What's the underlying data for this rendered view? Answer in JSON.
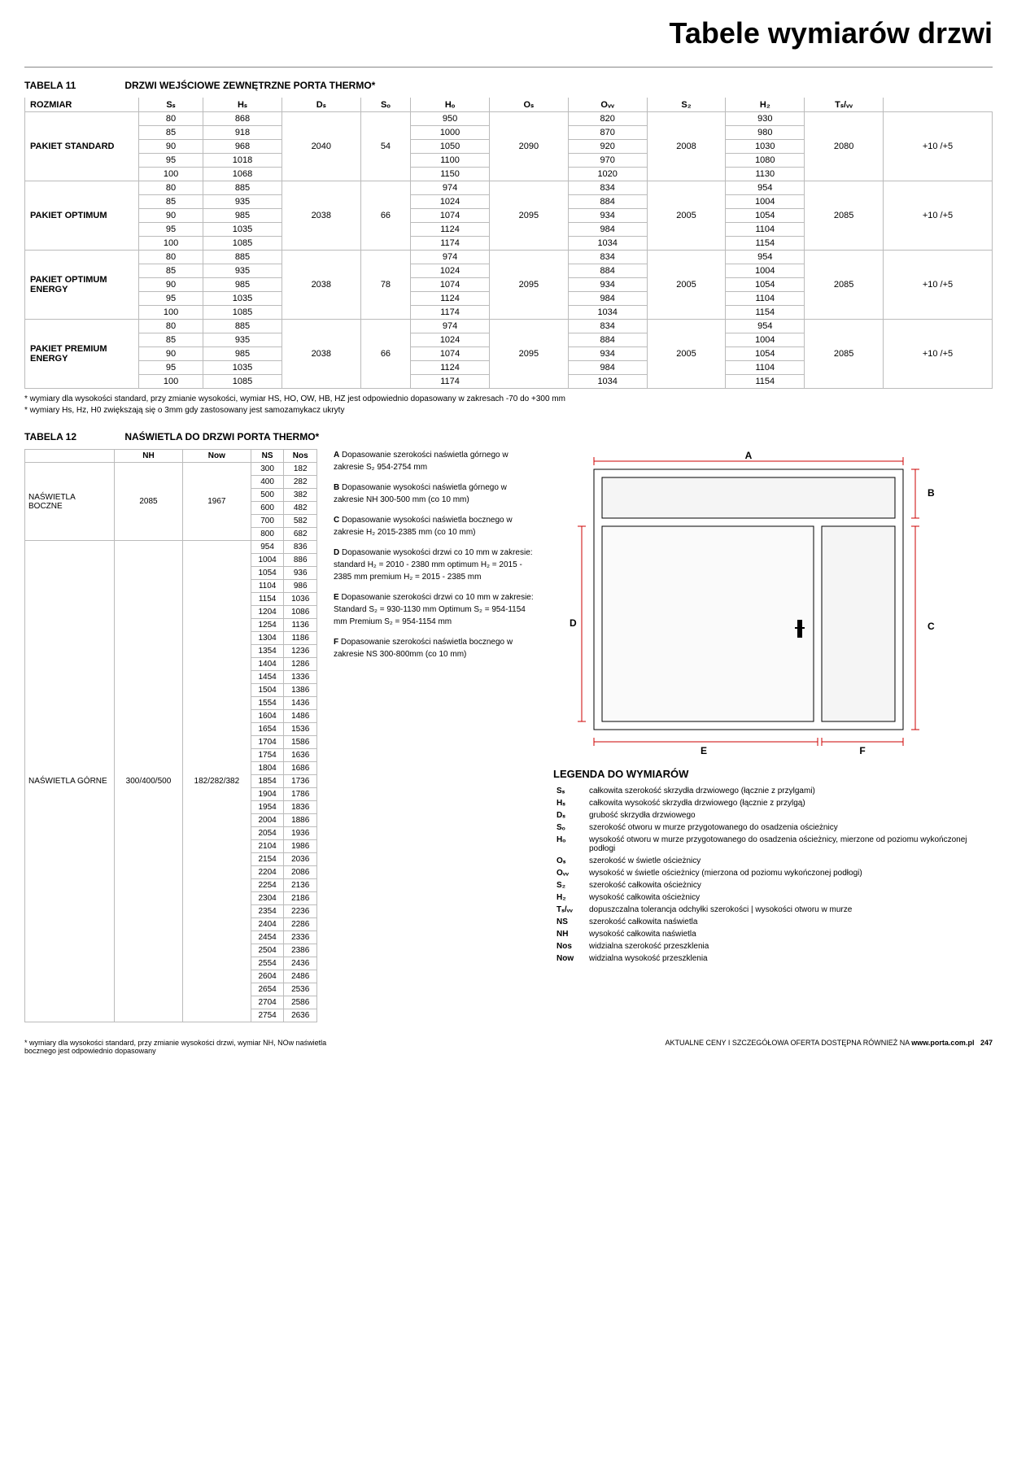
{
  "page": {
    "title": "Tabele wymiarów drzwi",
    "table11_label": "TABELA 11",
    "table11_title": "DRZWI WEJŚCIOWE ZEWNĘTRZNE PORTA THERMO*",
    "table12_label": "TABELA 12",
    "table12_title": "NAŚWIETLA DO DRZWI PORTA THERMO*",
    "legend_title": "LEGENDA DO WYMIARÓW",
    "footer_note": "* wymiary dla wysokości standard, przy zmianie wysokości drzwi, wymiar NH, NOw naświetla bocznego jest odpowiednio dopasowany",
    "footer_right": "AKTUALNE CENY I SZCZEGÓŁOWA OFERTA DOSTĘPNA RÓWNIEŻ NA",
    "footer_url": "www.porta.com.pl",
    "page_num": "247"
  },
  "t11": {
    "headers": [
      "ROZMIAR",
      "Sₛ",
      "Hₛ",
      "Dₛ",
      "Sₒ",
      "Hₒ",
      "Oₛ",
      "Oᵥᵥ",
      "S₂",
      "H₂",
      "Tₛ/ᵥᵥ"
    ],
    "groups": [
      {
        "label": "PAKIET STANDARD",
        "Hs": "2040",
        "Ds": "54",
        "Ho": "2090",
        "Ow": "2008",
        "Hz": "2080",
        "T": "+10 /+5",
        "rows": [
          [
            "80",
            "868",
            "950",
            "820",
            "930"
          ],
          [
            "85",
            "918",
            "1000",
            "870",
            "980"
          ],
          [
            "90",
            "968",
            "1050",
            "920",
            "1030"
          ],
          [
            "95",
            "1018",
            "1100",
            "970",
            "1080"
          ],
          [
            "100",
            "1068",
            "1150",
            "1020",
            "1130"
          ]
        ]
      },
      {
        "label": "PAKIET OPTIMUM",
        "Hs": "2038",
        "Ds": "66",
        "Ho": "2095",
        "Ow": "2005",
        "Hz": "2085",
        "T": "+10 /+5",
        "rows": [
          [
            "80",
            "885",
            "974",
            "834",
            "954"
          ],
          [
            "85",
            "935",
            "1024",
            "884",
            "1004"
          ],
          [
            "90",
            "985",
            "1074",
            "934",
            "1054"
          ],
          [
            "95",
            "1035",
            "1124",
            "984",
            "1104"
          ],
          [
            "100",
            "1085",
            "1174",
            "1034",
            "1154"
          ]
        ]
      },
      {
        "label": "PAKIET OPTIMUM ENERGY",
        "Hs": "2038",
        "Ds": "78",
        "Ho": "2095",
        "Ow": "2005",
        "Hz": "2085",
        "T": "+10 /+5",
        "rows": [
          [
            "80",
            "885",
            "974",
            "834",
            "954"
          ],
          [
            "85",
            "935",
            "1024",
            "884",
            "1004"
          ],
          [
            "90",
            "985",
            "1074",
            "934",
            "1054"
          ],
          [
            "95",
            "1035",
            "1124",
            "984",
            "1104"
          ],
          [
            "100",
            "1085",
            "1174",
            "1034",
            "1154"
          ]
        ]
      },
      {
        "label": "PAKIET PREMIUM ENERGY",
        "Hs": "2038",
        "Ds": "66",
        "Ho": "2095",
        "Ow": "2005",
        "Hz": "2085",
        "T": "+10 /+5",
        "rows": [
          [
            "80",
            "885",
            "974",
            "834",
            "954"
          ],
          [
            "85",
            "935",
            "1024",
            "884",
            "1004"
          ],
          [
            "90",
            "985",
            "1074",
            "934",
            "1054"
          ],
          [
            "95",
            "1035",
            "1124",
            "984",
            "1104"
          ],
          [
            "100",
            "1085",
            "1174",
            "1034",
            "1154"
          ]
        ]
      }
    ]
  },
  "t11_notes": [
    "* wymiary dla wysokości standard, przy zmianie wysokości, wymiar HS, HO, OW, HB, HZ jest odpowiednio dopasowany w zakresach -70 do +300 mm",
    "* wymiary Hs, Hz, H0 zwiększają się o 3mm gdy zastosowany jest samozamykacz ukryty"
  ],
  "t12": {
    "headers": [
      "",
      "NH",
      "Now",
      "NS",
      "Nos"
    ],
    "boczne": {
      "label": "NAŚWIETLA BOCZNE",
      "NH": "2085",
      "Now": "1967",
      "rows": [
        [
          "300",
          "182"
        ],
        [
          "400",
          "282"
        ],
        [
          "500",
          "382"
        ],
        [
          "600",
          "482"
        ],
        [
          "700",
          "582"
        ],
        [
          "800",
          "682"
        ]
      ]
    },
    "gorne": {
      "label": "NAŚWIETLA GÓRNE",
      "NH": "300/400/500",
      "Now": "182/282/382",
      "rows": [
        [
          "954",
          "836"
        ],
        [
          "1004",
          "886"
        ],
        [
          "1054",
          "936"
        ],
        [
          "1104",
          "986"
        ],
        [
          "1154",
          "1036"
        ],
        [
          "1204",
          "1086"
        ],
        [
          "1254",
          "1136"
        ],
        [
          "1304",
          "1186"
        ],
        [
          "1354",
          "1236"
        ],
        [
          "1404",
          "1286"
        ],
        [
          "1454",
          "1336"
        ],
        [
          "1504",
          "1386"
        ],
        [
          "1554",
          "1436"
        ],
        [
          "1604",
          "1486"
        ],
        [
          "1654",
          "1536"
        ],
        [
          "1704",
          "1586"
        ],
        [
          "1754",
          "1636"
        ],
        [
          "1804",
          "1686"
        ],
        [
          "1854",
          "1736"
        ],
        [
          "1904",
          "1786"
        ],
        [
          "1954",
          "1836"
        ],
        [
          "2004",
          "1886"
        ],
        [
          "2054",
          "1936"
        ],
        [
          "2104",
          "1986"
        ],
        [
          "2154",
          "2036"
        ],
        [
          "2204",
          "2086"
        ],
        [
          "2254",
          "2136"
        ],
        [
          "2304",
          "2186"
        ],
        [
          "2354",
          "2236"
        ],
        [
          "2404",
          "2286"
        ],
        [
          "2454",
          "2336"
        ],
        [
          "2504",
          "2386"
        ],
        [
          "2554",
          "2436"
        ],
        [
          "2604",
          "2486"
        ],
        [
          "2654",
          "2536"
        ],
        [
          "2704",
          "2586"
        ],
        [
          "2754",
          "2636"
        ]
      ]
    }
  },
  "notes_mid": [
    {
      "k": "A",
      "t": "Dopasowanie szerokości naświetla górnego w zakresie S₂ 954-2754 mm"
    },
    {
      "k": "B",
      "t": "Dopasowanie wysokości naświetla górnego w zakresie NH 300-500 mm (co 10 mm)"
    },
    {
      "k": "C",
      "t": "Dopasowanie wysokości naświetla bocznego w zakresie H₂ 2015-2385 mm (co 10 mm)"
    },
    {
      "k": "D",
      "t": "Dopasowanie wysokości drzwi co 10 mm w zakresie: standard H₂ = 2010 - 2380 mm optimum H₂ = 2015 - 2385 mm premium H₂ = 2015 - 2385 mm"
    },
    {
      "k": "E",
      "t": "Dopasowanie szerokości drzwi co 10 mm w zakresie: Standard S₂ = 930-1130 mm Optimum S₂ = 954-1154 mm Premium S₂ = 954-1154 mm"
    },
    {
      "k": "F",
      "t": "Dopasowanie szerokości naświetla bocznego w zakresie NS 300-800mm (co 10 mm)"
    }
  ],
  "legend": [
    [
      "Sₛ",
      "całkowita szerokość skrzydła drzwiowego (łącznie z przylgami)"
    ],
    [
      "Hₛ",
      "całkowita wysokość skrzydła drzwiowego (łącznie z przylgą)"
    ],
    [
      "Dₛ",
      "grubość skrzydła drzwiowego"
    ],
    [
      "Sₒ",
      "szerokość otworu w murze przygotowanego do osadzenia ościeżnicy"
    ],
    [
      "Hₒ",
      "wysokość otworu w murze przygotowanego do osadzenia ościeżnicy, mierzone od poziomu wykończonej podłogi"
    ],
    [
      "Oₛ",
      "szerokość w świetle ościeżnicy"
    ],
    [
      "Oᵥᵥ",
      "wysokość w świetle ościeżnicy (mierzona od poziomu wykończonej podłogi)"
    ],
    [
      "S₂",
      "szerokość całkowita ościeżnicy"
    ],
    [
      "H₂",
      "wysokość całkowita ościeżnicy"
    ],
    [
      "Tₛ/ᵥᵥ",
      "dopuszczalna tolerancja odchyłki szerokości | wysokości otworu w murze"
    ],
    [
      "NS",
      "szerokość całkowita naświetla"
    ],
    [
      "NH",
      "wysokość całkowita naświetla"
    ],
    [
      "Nos",
      "widzialna szerokość przeszklenia"
    ],
    [
      "Now",
      "widzialna wysokość przeszklenia"
    ]
  ],
  "diagram": {
    "labels": {
      "A": "A",
      "B": "B",
      "C": "C",
      "D": "D",
      "E": "E",
      "F": "F"
    },
    "colors": {
      "frame": "#000",
      "dim": "#c00",
      "fill": "#f5f5f5"
    }
  }
}
